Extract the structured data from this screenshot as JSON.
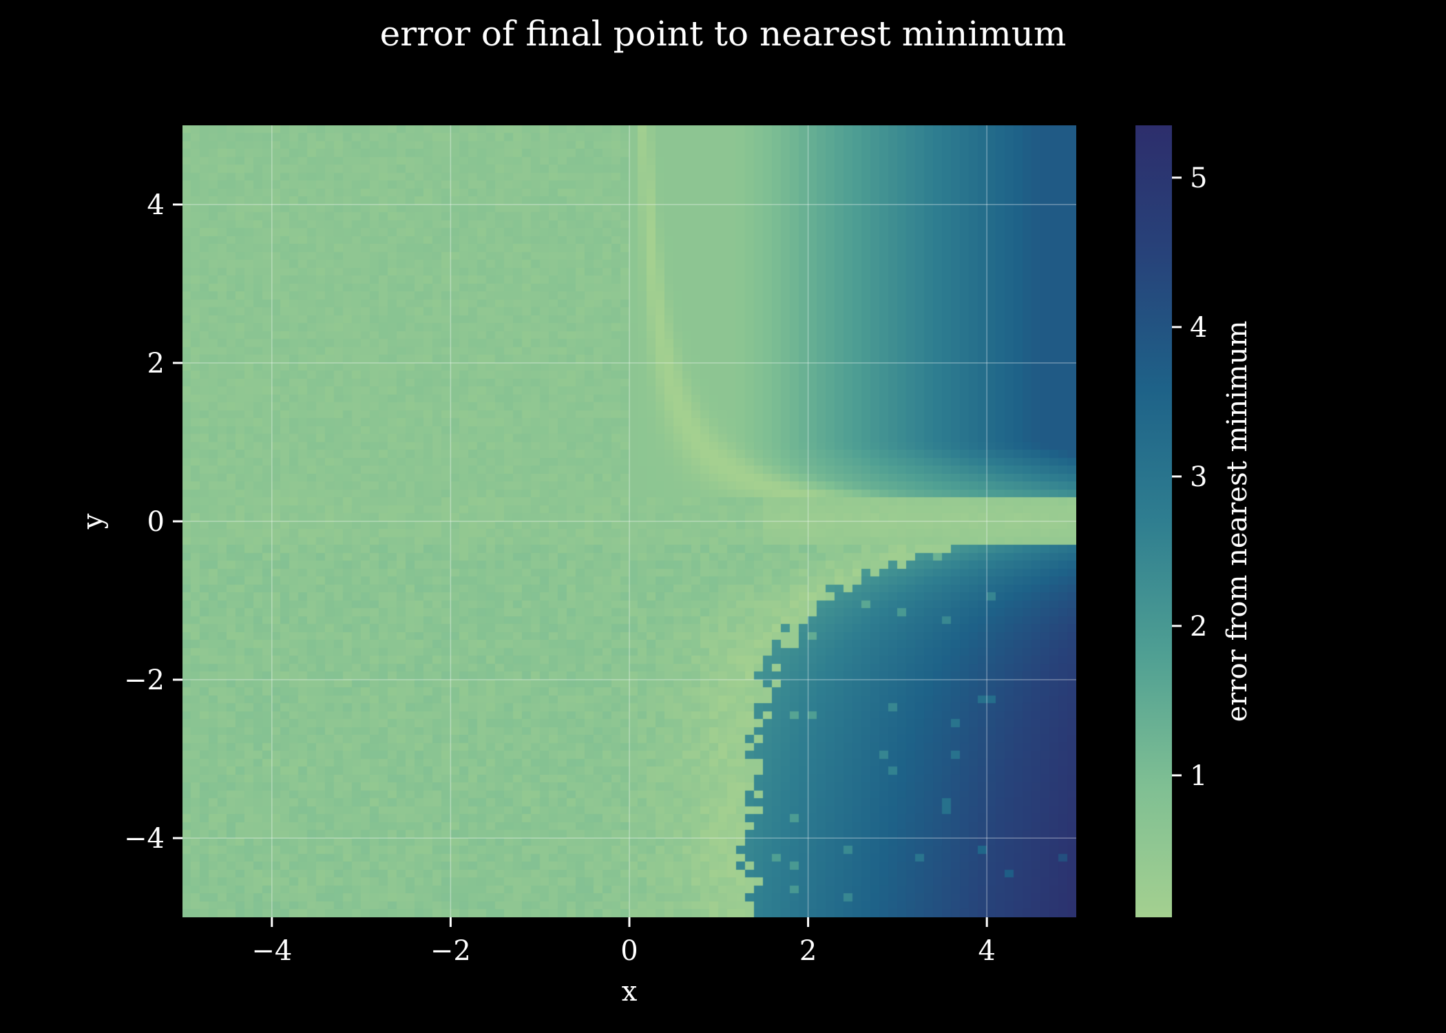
{
  "chart_data": {
    "type": "heatmap",
    "title": "error of final point to nearest minimum",
    "xlabel": "x",
    "ylabel": "y",
    "xlim": [
      -5,
      5
    ],
    "ylim": [
      -5,
      5
    ],
    "xticks": [
      -4,
      -2,
      0,
      2,
      4
    ],
    "yticks": [
      -4,
      -2,
      0,
      2,
      4
    ],
    "grid": true,
    "grid_resolution": [
      100,
      100
    ],
    "value_range": [
      0.05,
      5.35
    ],
    "colorbar": {
      "label": "error from nearest minimum",
      "ticks": [
        1,
        2,
        3,
        4,
        5
      ],
      "colormap": "crest",
      "stops": [
        "#a4d090",
        "#7fbf93",
        "#4f9f93",
        "#2f7e90",
        "#1e6288",
        "#27437a",
        "#2d2e6c"
      ]
    },
    "description_of_values": {
      "left_half_basin_error": 0.65,
      "ridge_min_error": 0.05,
      "upper_right_max_error": 3.8,
      "lower_right_max_error": 5.35
    },
    "colors": {
      "background": "#000000",
      "text": "#ffffff",
      "grid": "#ffffff"
    }
  }
}
